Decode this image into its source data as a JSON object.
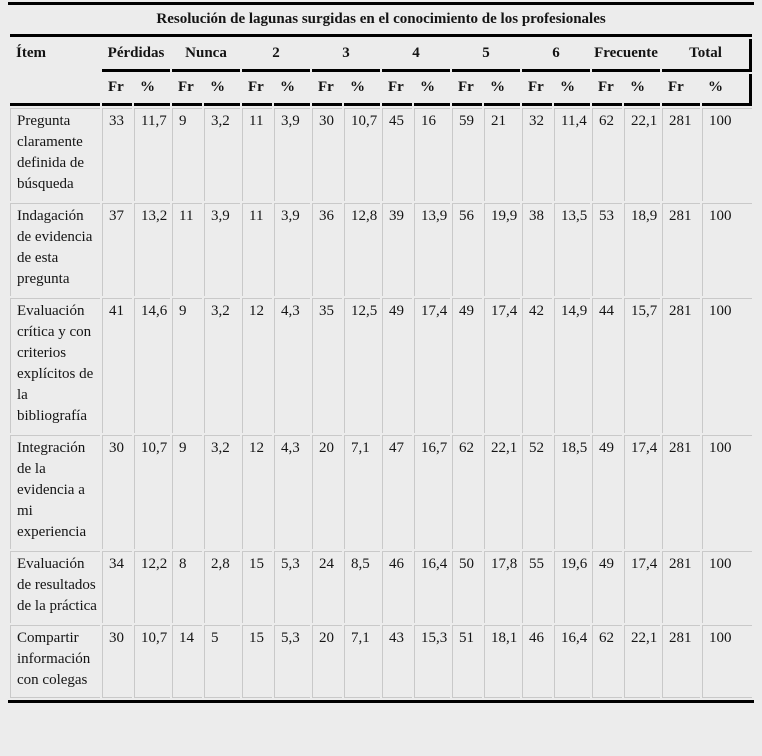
{
  "table": {
    "title": "Resolución de lagunas surgidas en el conocimiento de los profesionales",
    "item_header": "Ítem",
    "groups": [
      "Pérdidas",
      "Nunca",
      "2",
      "3",
      "4",
      "5",
      "6",
      "Frecuente",
      "Total"
    ],
    "sub_headers": [
      "Fr",
      "%"
    ],
    "rows": [
      {
        "item": "Pregunta claramente definida de búsqueda",
        "values": [
          "33",
          "11,7",
          "9",
          "3,2",
          "11",
          "3,9",
          "30",
          "10,7",
          "45",
          "16",
          "59",
          "21",
          "32",
          "11,4",
          "62",
          "22,1",
          "281",
          "100"
        ]
      },
      {
        "item": "Indagación de evidencia de esta pregunta",
        "values": [
          "37",
          "13,2",
          "11",
          "3,9",
          "11",
          "3,9",
          "36",
          "12,8",
          "39",
          "13,9",
          "56",
          "19,9",
          "38",
          "13,5",
          "53",
          "18,9",
          "281",
          "100"
        ]
      },
      {
        "item": "Evaluación crítica y con criterios explícitos de la bibliografía",
        "values": [
          "41",
          "14,6",
          "9",
          "3,2",
          "12",
          "4,3",
          "35",
          "12,5",
          "49",
          "17,4",
          "49",
          "17,4",
          "42",
          "14,9",
          "44",
          "15,7",
          "281",
          "100"
        ]
      },
      {
        "item": "Integración de la evidencia a mi experiencia",
        "values": [
          "30",
          "10,7",
          "9",
          "3,2",
          "12",
          "4,3",
          "20",
          "7,1",
          "47",
          "16,7",
          "62",
          "22,1",
          "52",
          "18,5",
          "49",
          "17,4",
          "281",
          "100"
        ]
      },
      {
        "item": "Evaluación de resultados de la práctica",
        "values": [
          "34",
          "12,2",
          "8",
          "2,8",
          "15",
          "5,3",
          "24",
          "8,5",
          "46",
          "16,4",
          "50",
          "17,8",
          "55",
          "19,6",
          "49",
          "17,4",
          "281",
          "100"
        ]
      },
      {
        "item": "Compartir información con colegas",
        "values": [
          "30",
          "10,7",
          "14",
          "5",
          "15",
          "5,3",
          "20",
          "7,1",
          "43",
          "15,3",
          "51",
          "18,1",
          "46",
          "16,4",
          "62",
          "22,1",
          "281",
          "100"
        ]
      }
    ]
  },
  "chart_data": {
    "type": "table",
    "title": "Resolución de lagunas surgidas en el conocimiento de los profesionales",
    "columns": [
      "Ítem",
      "Pérdidas Fr",
      "Pérdidas %",
      "Nunca Fr",
      "Nunca %",
      "2 Fr",
      "2 %",
      "3 Fr",
      "3 %",
      "4 Fr",
      "4 %",
      "5 Fr",
      "5 %",
      "6 Fr",
      "6 %",
      "Frecuente Fr",
      "Frecuente %",
      "Total Fr",
      "Total %"
    ],
    "rows": [
      [
        "Pregunta claramente definida de búsqueda",
        33,
        11.7,
        9,
        3.2,
        11,
        3.9,
        30,
        10.7,
        45,
        16,
        59,
        21,
        32,
        11.4,
        62,
        22.1,
        281,
        100
      ],
      [
        "Indagación de evidencia de esta pregunta",
        37,
        13.2,
        11,
        3.9,
        11,
        3.9,
        36,
        12.8,
        39,
        13.9,
        56,
        19.9,
        38,
        13.5,
        53,
        18.9,
        281,
        100
      ],
      [
        "Evaluación crítica y con criterios explícitos de la bibliografía",
        41,
        14.6,
        9,
        3.2,
        12,
        4.3,
        35,
        12.5,
        49,
        17.4,
        49,
        17.4,
        42,
        14.9,
        44,
        15.7,
        281,
        100
      ],
      [
        "Integración de la evidencia a mi experiencia",
        30,
        10.7,
        9,
        3.2,
        12,
        4.3,
        20,
        7.1,
        47,
        16.7,
        62,
        22.1,
        52,
        18.5,
        49,
        17.4,
        281,
        100
      ],
      [
        "Evaluación de resultados de la práctica",
        34,
        12.2,
        8,
        2.8,
        15,
        5.3,
        24,
        8.5,
        46,
        16.4,
        50,
        17.8,
        55,
        19.6,
        49,
        17.4,
        281,
        100
      ],
      [
        "Compartir información con colegas",
        30,
        10.7,
        14,
        5,
        15,
        5.3,
        20,
        7.1,
        43,
        15.3,
        51,
        18.1,
        46,
        16.4,
        62,
        22.1,
        281,
        100
      ]
    ]
  },
  "colors": {
    "background": "#ececec",
    "rule_black": "#000000",
    "grid_gray": "#c9c9c9",
    "text": "#141414"
  }
}
